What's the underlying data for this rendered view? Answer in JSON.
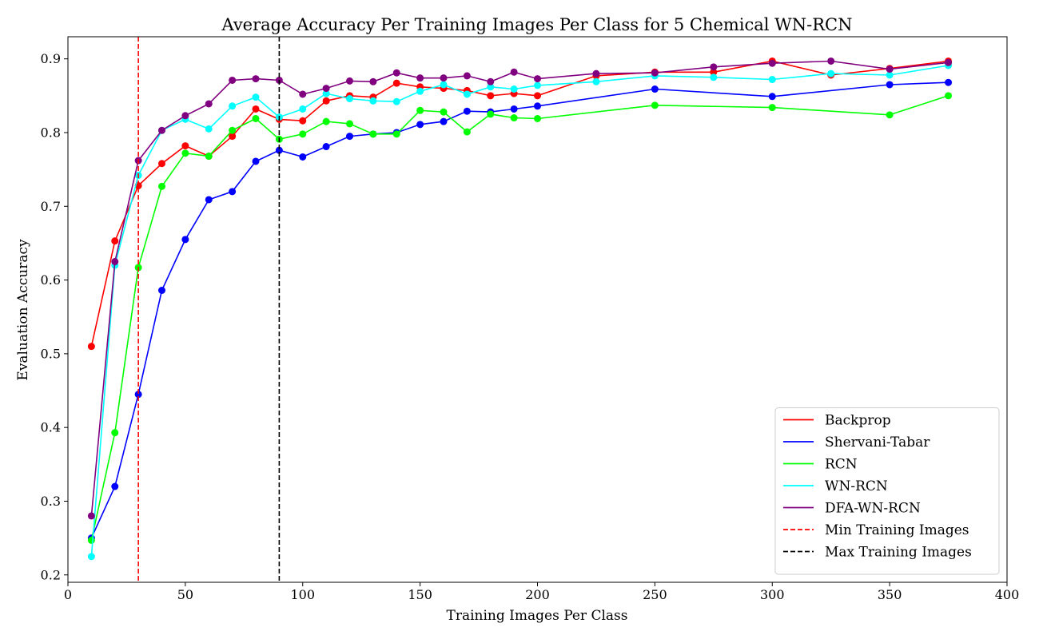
{
  "chart_data": {
    "type": "line",
    "title": "Average Accuracy Per Training Images Per Class for 5 Chemical WN-RCN",
    "xlabel": "Training Images Per Class",
    "ylabel": "Evaluation Accuracy",
    "xlim": [
      0,
      400
    ],
    "ylim": [
      0.19,
      0.93
    ],
    "xticks": [
      0,
      50,
      100,
      150,
      200,
      250,
      300,
      350,
      400
    ],
    "yticks": [
      0.2,
      0.3,
      0.4,
      0.5,
      0.6,
      0.7,
      0.8,
      0.9
    ],
    "grid": false,
    "legend_position": "bottom-right",
    "x": [
      10,
      20,
      30,
      40,
      50,
      60,
      70,
      80,
      90,
      100,
      110,
      120,
      130,
      140,
      150,
      160,
      170,
      180,
      190,
      200,
      225,
      250,
      275,
      300,
      325,
      350,
      375
    ],
    "series": [
      {
        "name": "Backprop",
        "color": "#ff0000",
        "values": [
          0.51,
          0.653,
          0.728,
          0.758,
          0.782,
          0.768,
          0.795,
          0.832,
          0.818,
          0.816,
          0.843,
          0.85,
          0.848,
          0.867,
          0.862,
          0.86,
          0.857,
          0.85,
          0.853,
          0.85,
          0.877,
          0.882,
          0.882,
          0.897,
          0.878,
          0.887,
          0.897
        ]
      },
      {
        "name": "Shervani-Tabar",
        "color": "#0000ff",
        "values": [
          0.25,
          0.32,
          0.445,
          0.586,
          0.655,
          0.709,
          0.72,
          0.761,
          0.776,
          0.767,
          0.781,
          0.795,
          0.798,
          0.8,
          0.811,
          0.815,
          0.829,
          0.828,
          0.832,
          0.836,
          null,
          0.859,
          null,
          0.849,
          null,
          0.865,
          0.868
        ]
      },
      {
        "name": "RCN",
        "color": "#00ff00",
        "values": [
          0.247,
          0.393,
          0.617,
          0.727,
          0.772,
          0.768,
          0.803,
          0.819,
          0.791,
          0.798,
          0.815,
          0.812,
          0.798,
          0.798,
          0.83,
          0.828,
          0.801,
          0.825,
          0.82,
          0.819,
          null,
          0.837,
          null,
          0.834,
          null,
          0.824,
          0.85
        ]
      },
      {
        "name": "WN-RCN",
        "color": "#00ffff",
        "values": [
          0.225,
          0.62,
          0.742,
          0.803,
          0.818,
          0.805,
          0.836,
          0.848,
          0.821,
          0.832,
          0.853,
          0.846,
          0.843,
          0.842,
          0.856,
          0.865,
          0.852,
          0.862,
          0.859,
          0.864,
          0.869,
          0.877,
          0.875,
          0.872,
          0.88,
          0.878,
          0.891
        ]
      },
      {
        "name": "DFA-WN-RCN",
        "color": "#800080",
        "values": [
          0.28,
          0.625,
          0.762,
          0.803,
          0.823,
          0.839,
          0.871,
          0.873,
          0.871,
          0.852,
          0.86,
          0.87,
          0.869,
          0.881,
          0.874,
          0.874,
          0.877,
          0.869,
          0.882,
          0.873,
          0.88,
          0.881,
          0.889,
          0.894,
          0.897,
          0.886,
          0.895
        ]
      }
    ],
    "reference_lines": [
      {
        "name": "Min Training Images",
        "x": 30,
        "color": "#ff0000",
        "style": "dashed"
      },
      {
        "name": "Max Training Images",
        "x": 90,
        "color": "#000000",
        "style": "dashed"
      }
    ]
  }
}
